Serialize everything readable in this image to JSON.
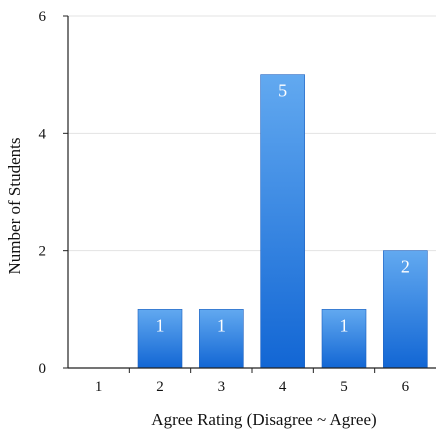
{
  "chart_data": {
    "type": "bar",
    "categories": [
      "1",
      "2",
      "3",
      "4",
      "5",
      "6"
    ],
    "values": [
      0,
      1,
      1,
      5,
      1,
      2
    ],
    "data_labels": [
      "",
      "1",
      "1",
      "5",
      "1",
      "2"
    ],
    "xlabel": "Agree Rating (Disagree ~ Agree)",
    "ylabel": "Number of Students",
    "ylim": [
      0,
      6
    ],
    "yticks": [
      "0",
      "2",
      "4",
      "6"
    ],
    "ytick_values": [
      0,
      2,
      4,
      6
    ],
    "grid": true,
    "bar_color": "#1f74d8"
  }
}
